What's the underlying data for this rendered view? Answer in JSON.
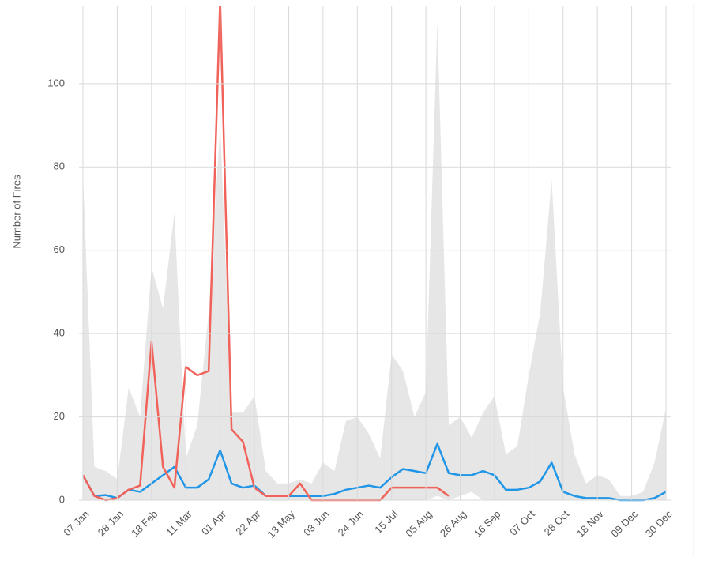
{
  "chart_data": {
    "type": "line",
    "y_label": "Number of Fires",
    "categories": [
      "07 Jan",
      null,
      null,
      "28 Jan",
      null,
      null,
      "18 Feb",
      null,
      null,
      "11 Mar",
      null,
      null,
      "01 Apr",
      null,
      null,
      "22 Apr",
      null,
      null,
      "13 May",
      null,
      null,
      "03 Jun",
      null,
      null,
      "24 Jun",
      null,
      null,
      "15 Jul",
      null,
      null,
      "05 Aug",
      null,
      null,
      "26 Aug",
      null,
      null,
      "16 Sep",
      null,
      null,
      "07 Oct",
      null,
      null,
      "28 Oct",
      null,
      null,
      "18 Nov",
      null,
      null,
      "09 Dec",
      null,
      null,
      "30 Dec"
    ],
    "band": {
      "color": "#e6e6e6",
      "upper": [
        78,
        8,
        7,
        5,
        27,
        20,
        56,
        46,
        69,
        10,
        18,
        45,
        90,
        21,
        21,
        25,
        7,
        4,
        4,
        5,
        4,
        9,
        7,
        19,
        20,
        16,
        10,
        35,
        31,
        20,
        26,
        115,
        18,
        20,
        15,
        21,
        25,
        11,
        13,
        30,
        45,
        77,
        27,
        11,
        4,
        6,
        5,
        1,
        1,
        2,
        9,
        22
      ],
      "lower": [
        0,
        0,
        0,
        0,
        0,
        0,
        0,
        0,
        0,
        0,
        0,
        0,
        0,
        0,
        0,
        0,
        0,
        0,
        0,
        0,
        0,
        0,
        0,
        0,
        0,
        0,
        0,
        0,
        0,
        0,
        0,
        1,
        0,
        1,
        2,
        0,
        0,
        0,
        0,
        0,
        0,
        0,
        0,
        0,
        0,
        0,
        0,
        0,
        0,
        0,
        0,
        0
      ]
    },
    "series": [
      {
        "color": "#2196e6",
        "values": [
          6,
          1,
          1.2,
          0.5,
          2.5,
          2,
          4,
          6,
          8,
          3,
          3,
          5,
          12,
          4,
          3,
          3.5,
          1,
          1,
          1,
          1,
          1,
          1,
          1.5,
          2.5,
          3,
          3.5,
          3,
          5.5,
          7.5,
          7,
          6.5,
          13.5,
          6.5,
          6,
          6,
          7,
          6,
          2.5,
          2.5,
          3,
          4.5,
          9,
          2,
          1,
          0.5,
          0.5,
          0.5,
          0,
          0,
          0,
          0.5,
          2
        ]
      },
      {
        "color": "#f0625a",
        "values": [
          6,
          1,
          0,
          0.5,
          2.5,
          3.5,
          38,
          8,
          3,
          32,
          30,
          31,
          120,
          17,
          14,
          3,
          1,
          1,
          1,
          4,
          0,
          0,
          0,
          0,
          0,
          0,
          0,
          3,
          3,
          3,
          3,
          3,
          1,
          null,
          null,
          null,
          null,
          null,
          null,
          null,
          null,
          null,
          null,
          null,
          null,
          null,
          null,
          null,
          null,
          null,
          null,
          null
        ]
      }
    ],
    "ylim": [
      0,
      118
    ],
    "yticks": [
      0,
      20,
      40,
      60,
      80,
      100
    ],
    "grid": true
  }
}
